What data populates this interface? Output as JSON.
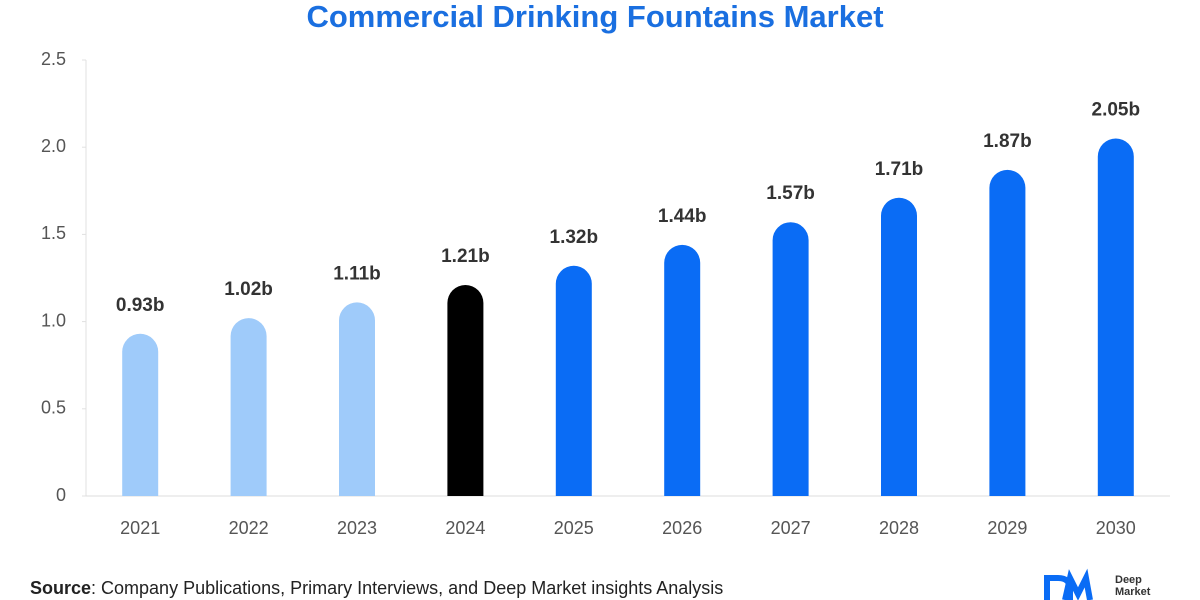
{
  "chart_data": {
    "type": "bar",
    "title": "Commercial Drinking Fountains Market",
    "categories": [
      "2021",
      "2022",
      "2023",
      "2024",
      "2025",
      "2026",
      "2027",
      "2028",
      "2029",
      "2030"
    ],
    "values": [
      0.93,
      1.02,
      1.11,
      1.21,
      1.32,
      1.44,
      1.57,
      1.71,
      1.87,
      2.05
    ],
    "value_labels": [
      "0.93b",
      "1.02b",
      "1.11b",
      "1.21b",
      "1.32b",
      "1.44b",
      "1.57b",
      "1.71b",
      "1.87b",
      "2.05b"
    ],
    "colors": [
      "#9fcbfa",
      "#9fcbfa",
      "#9fcbfa",
      "#000000",
      "#0a6cf5",
      "#0a6cf5",
      "#0a6cf5",
      "#0a6cf5",
      "#0a6cf5",
      "#0a6cf5"
    ],
    "ylim": [
      0,
      2.5
    ],
    "yticks": [
      0,
      0.5,
      {
        "value": 1,
        "label": "1.0"
      },
      1.5,
      {
        "value": 2,
        "label": "2.0"
      },
      2.5
    ],
    "grid": false,
    "source_label": "Source",
    "source_text": ": Company Publications, Primary Interviews, and Deep Market insights Analysis",
    "logo_lines": [
      "Deep",
      "Market"
    ]
  }
}
